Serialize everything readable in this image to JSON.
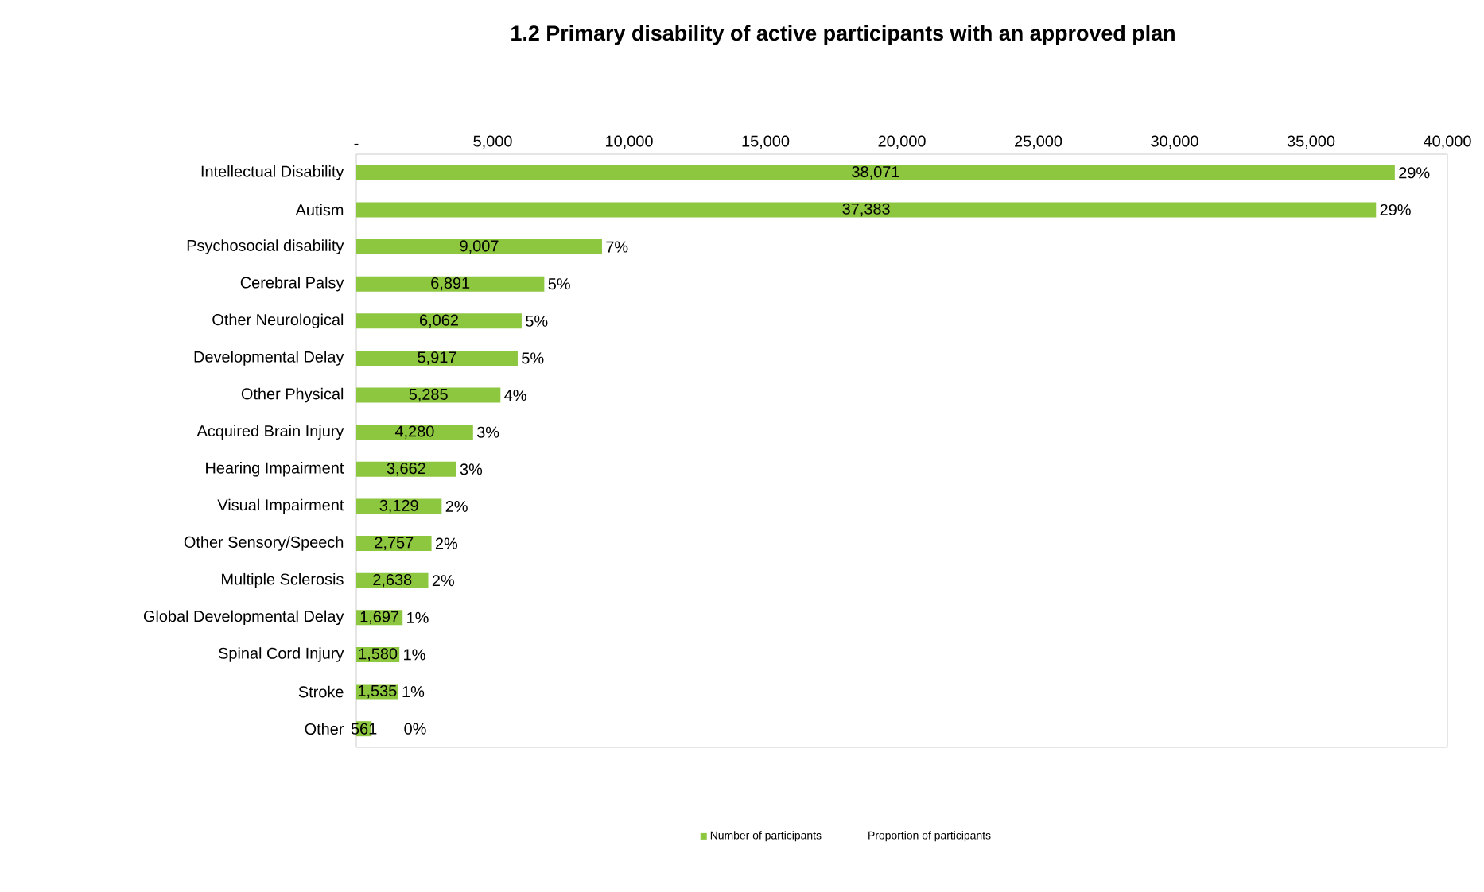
{
  "chart_data": {
    "type": "bar",
    "orientation": "horizontal",
    "title": "1.2 Primary disability of active participants with an approved plan",
    "categories": [
      "Intellectual Disability",
      "Autism",
      "Psychosocial disability",
      "Cerebral Palsy",
      "Other Neurological",
      "Developmental Delay",
      "Other Physical",
      "Acquired Brain Injury",
      "Hearing Impairment",
      "Visual Impairment",
      "Other Sensory/Speech",
      "Multiple Sclerosis",
      "Global Developmental Delay",
      "Spinal Cord Injury",
      "Stroke",
      "Other"
    ],
    "series": [
      {
        "name": "Number of participants",
        "color": "#8dc63f",
        "values": [
          38071,
          37383,
          9007,
          6891,
          6062,
          5917,
          5285,
          4280,
          3662,
          3129,
          2757,
          2638,
          1697,
          1580,
          1535,
          561
        ],
        "value_labels": [
          "38,071",
          "37,383",
          "9,007",
          "6,891",
          "6,062",
          "5,917",
          "5,285",
          "4,280",
          "3,662",
          "3,129",
          "2,757",
          "2,638",
          "1,697",
          "1,580",
          "1,535",
          "561"
        ]
      }
    ],
    "xlim": [
      0,
      40000
    ],
    "xticks": [
      {
        "value": 0,
        "label": "-"
      },
      {
        "value": 5000,
        "label": "5,000"
      },
      {
        "value": 10000,
        "label": "10,000"
      },
      {
        "value": 15000,
        "label": "15,000"
      },
      {
        "value": 20000,
        "label": "20,000"
      },
      {
        "value": 25000,
        "label": "25,000"
      },
      {
        "value": 30000,
        "label": "30,000"
      },
      {
        "value": 35000,
        "label": "35,000"
      },
      {
        "value": 40000,
        "label": "40,000"
      }
    ],
    "legend": "bottom",
    "annotations": [
      {
        "text": "29%",
        "x": 38071,
        "y": "Intellectual Disability"
      },
      {
        "text": "29%",
        "x": 37383,
        "y": "Autism"
      },
      {
        "text": "7%",
        "x": 9007,
        "y": "Psychosocial disability"
      },
      {
        "text": "5%",
        "x": 6891,
        "y": "Cerebral Palsy"
      },
      {
        "text": "5%",
        "x": 6062,
        "y": "Other Neurological"
      },
      {
        "text": "5%",
        "x": 5917,
        "y": "Developmental Delay"
      },
      {
        "text": "4%",
        "x": 5285,
        "y": "Other Physical"
      },
      {
        "text": "3%",
        "x": 4280,
        "y": "Acquired Brain Injury"
      },
      {
        "text": "3%",
        "x": 3662,
        "y": "Hearing Impairment"
      },
      {
        "text": "2%",
        "x": 3129,
        "y": "Visual Impairment"
      },
      {
        "text": "2%",
        "x": 2757,
        "y": "Other Sensory/Speech"
      },
      {
        "text": "2%",
        "x": 2638,
        "y": "Multiple Sclerosis"
      },
      {
        "text": "1%",
        "x": 1697,
        "y": "Global Developmental Delay"
      },
      {
        "text": "1%",
        "x": 1580,
        "y": "Spinal Cord Injury"
      },
      {
        "text": "1%",
        "x": 1535,
        "y": "Stroke"
      },
      {
        "text": "0%",
        "x": 561,
        "y": "Other"
      },
      "Proportion of participants"
    ]
  }
}
